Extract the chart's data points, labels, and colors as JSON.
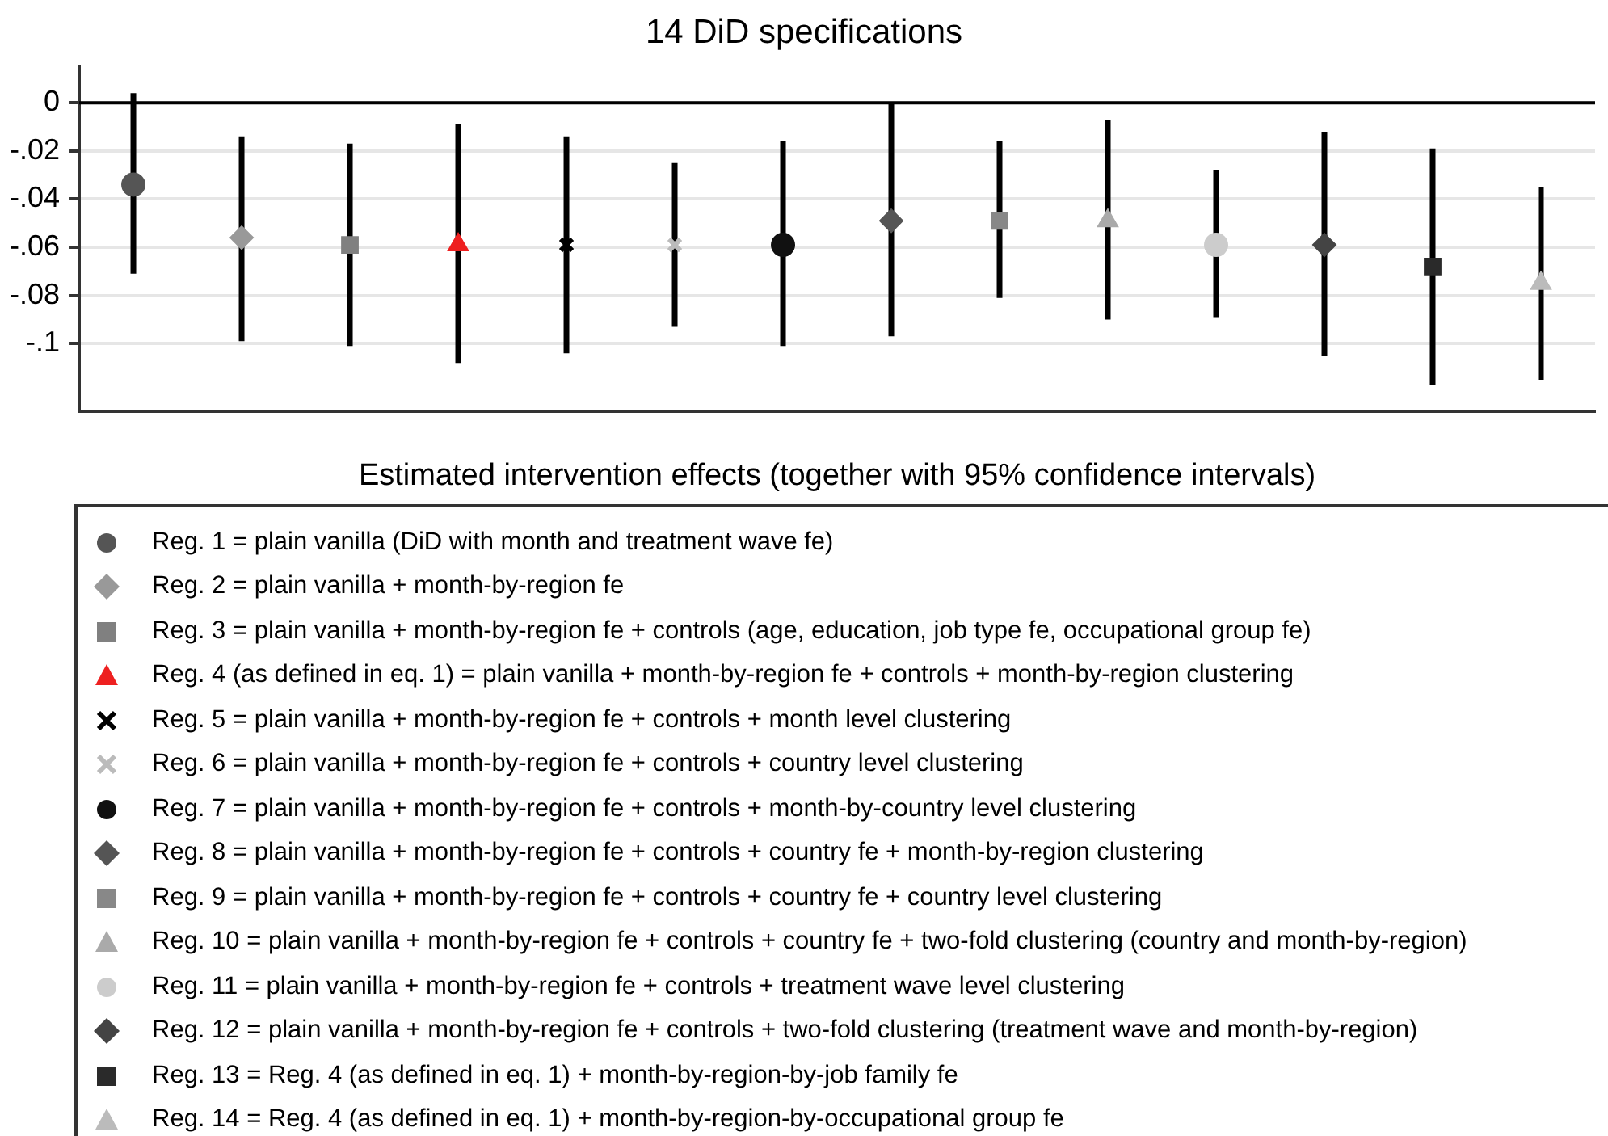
{
  "chart_data": {
    "type": "scatter",
    "title": "14 DiD specifications",
    "xlabel": "Estimated intervention effects (together with 95% confidence intervals)",
    "categories": [
      null,
      null,
      null,
      null,
      null,
      null,
      null,
      null,
      null,
      null,
      null,
      null,
      null,
      null
    ],
    "ylim": [
      -0.128,
      0.015
    ],
    "yticks": [
      {
        "value": 0,
        "label": "0"
      },
      {
        "value": -0.02,
        "label": "-.02"
      },
      {
        "value": -0.04,
        "label": "-.04"
      },
      {
        "value": -0.06,
        "label": "-.06"
      },
      {
        "value": -0.08,
        "label": "-.08"
      },
      {
        "value": -0.1,
        "label": "-.1"
      }
    ],
    "grid": "y",
    "legend": "bottom",
    "ref_lines": [
      {
        "axis": "y",
        "value": 0,
        "color": "#000000"
      }
    ],
    "series": [
      {
        "name": "Reg. 1 = plain vanilla (DiD with month and treatment wave fe)",
        "color": "#555555",
        "marker": "circle",
        "values": [
          -0.034,
          null,
          null,
          null,
          null,
          null,
          null,
          null,
          null,
          null,
          null,
          null,
          null,
          null
        ],
        "errors": [
          [
            -0.071,
            0.004
          ],
          null,
          null,
          null,
          null,
          null,
          null,
          null,
          null,
          null,
          null,
          null,
          null,
          null
        ]
      },
      {
        "name": "Reg. 2 = plain vanilla + month-by-region fe",
        "color": "#999999",
        "marker": "diamond",
        "values": [
          null,
          -0.056,
          null,
          null,
          null,
          null,
          null,
          null,
          null,
          null,
          null,
          null,
          null,
          null
        ],
        "errors": [
          null,
          [
            -0.099,
            -0.014
          ],
          null,
          null,
          null,
          null,
          null,
          null,
          null,
          null,
          null,
          null,
          null,
          null
        ]
      },
      {
        "name": "Reg. 3 = plain vanilla + month-by-region fe + controls (age, education, job type fe, occupational group fe)",
        "color": "#808080",
        "marker": "square",
        "values": [
          null,
          null,
          -0.059,
          null,
          null,
          null,
          null,
          null,
          null,
          null,
          null,
          null,
          null,
          null
        ],
        "errors": [
          null,
          null,
          [
            -0.101,
            -0.017
          ],
          null,
          null,
          null,
          null,
          null,
          null,
          null,
          null,
          null,
          null,
          null
        ]
      },
      {
        "name": "Reg. 4 (as defined in eq. 1) = plain vanilla + month-by-region fe + controls + month-by-region clustering",
        "color": "#ee2020",
        "marker": "triangle",
        "values": [
          null,
          null,
          null,
          -0.059,
          null,
          null,
          null,
          null,
          null,
          null,
          null,
          null,
          null,
          null
        ],
        "errors": [
          null,
          null,
          null,
          [
            -0.108,
            -0.009
          ],
          null,
          null,
          null,
          null,
          null,
          null,
          null,
          null,
          null,
          null
        ]
      },
      {
        "name": "Reg. 5 = plain vanilla + month-by-region fe + controls + month level clustering",
        "color": "#000000",
        "marker": "cross",
        "values": [
          null,
          null,
          null,
          null,
          -0.059,
          null,
          null,
          null,
          null,
          null,
          null,
          null,
          null,
          null
        ],
        "errors": [
          null,
          null,
          null,
          null,
          [
            -0.104,
            -0.014
          ],
          null,
          null,
          null,
          null,
          null,
          null,
          null,
          null,
          null
        ]
      },
      {
        "name": "Reg. 6 = plain vanilla + month-by-region fe + controls + country level clustering",
        "color": "#bbbbbb",
        "marker": "cross",
        "values": [
          null,
          null,
          null,
          null,
          null,
          -0.059,
          null,
          null,
          null,
          null,
          null,
          null,
          null,
          null
        ],
        "errors": [
          null,
          null,
          null,
          null,
          null,
          [
            -0.093,
            -0.025
          ],
          null,
          null,
          null,
          null,
          null,
          null,
          null,
          null
        ]
      },
      {
        "name": "Reg. 7 = plain vanilla + month-by-region fe + controls + month-by-country level clustering",
        "color": "#111111",
        "marker": "circle",
        "values": [
          null,
          null,
          null,
          null,
          null,
          null,
          -0.059,
          null,
          null,
          null,
          null,
          null,
          null,
          null
        ],
        "errors": [
          null,
          null,
          null,
          null,
          null,
          null,
          [
            -0.101,
            -0.016
          ],
          null,
          null,
          null,
          null,
          null,
          null,
          null
        ]
      },
      {
        "name": "Reg. 8 = plain vanilla + month-by-region fe + controls + country fe + month-by-region clustering",
        "color": "#555555",
        "marker": "diamond",
        "values": [
          null,
          null,
          null,
          null,
          null,
          null,
          null,
          -0.049,
          null,
          null,
          null,
          null,
          null,
          null
        ],
        "errors": [
          null,
          null,
          null,
          null,
          null,
          null,
          null,
          [
            -0.097,
            0
          ],
          null,
          null,
          null,
          null,
          null,
          null
        ]
      },
      {
        "name": "Reg. 9 = plain vanilla + month-by-region fe + controls + country fe + country level clustering",
        "color": "#888888",
        "marker": "square",
        "values": [
          null,
          null,
          null,
          null,
          null,
          null,
          null,
          null,
          -0.049,
          null,
          null,
          null,
          null,
          null
        ],
        "errors": [
          null,
          null,
          null,
          null,
          null,
          null,
          null,
          null,
          [
            -0.081,
            -0.016
          ],
          null,
          null,
          null,
          null,
          null
        ]
      },
      {
        "name": "Reg. 10 = plain vanilla + month-by-region fe + controls + country fe + two-fold clustering (country and month-by-region)",
        "color": "#aaaaaa",
        "marker": "triangle",
        "values": [
          null,
          null,
          null,
          null,
          null,
          null,
          null,
          null,
          null,
          -0.049,
          null,
          null,
          null,
          null
        ],
        "errors": [
          null,
          null,
          null,
          null,
          null,
          null,
          null,
          null,
          null,
          [
            -0.09,
            -0.007
          ],
          null,
          null,
          null,
          null
        ]
      },
      {
        "name": "Reg. 11 = plain vanilla + month-by-region fe + controls + treatment wave level clustering",
        "color": "#cccccc",
        "marker": "circle",
        "values": [
          null,
          null,
          null,
          null,
          null,
          null,
          null,
          null,
          null,
          null,
          -0.059,
          null,
          null,
          null
        ],
        "errors": [
          null,
          null,
          null,
          null,
          null,
          null,
          null,
          null,
          null,
          null,
          [
            -0.089,
            -0.028
          ],
          null,
          null,
          null
        ]
      },
      {
        "name": "Reg. 12 = plain vanilla + month-by-region fe + controls + two-fold clustering (treatment wave and month-by-region)",
        "color": "#444444",
        "marker": "diamond",
        "values": [
          null,
          null,
          null,
          null,
          null,
          null,
          null,
          null,
          null,
          null,
          null,
          -0.059,
          null,
          null
        ],
        "errors": [
          null,
          null,
          null,
          null,
          null,
          null,
          null,
          null,
          null,
          null,
          null,
          [
            -0.105,
            -0.012
          ],
          null,
          null
        ]
      },
      {
        "name": "Reg. 13 = Reg. 4 (as defined in eq. 1) + month-by-region-by-job family fe",
        "color": "#2a2a2a",
        "marker": "square",
        "values": [
          null,
          null,
          null,
          null,
          null,
          null,
          null,
          null,
          null,
          null,
          null,
          null,
          -0.068,
          null
        ],
        "errors": [
          null,
          null,
          null,
          null,
          null,
          null,
          null,
          null,
          null,
          null,
          null,
          null,
          [
            -0.117,
            -0.019
          ],
          null
        ]
      },
      {
        "name": "Reg. 14 = Reg. 4 (as defined in eq. 1) + month-by-region-by-occupational group fe",
        "color": "#bbbbbb",
        "marker": "triangle",
        "values": [
          null,
          null,
          null,
          null,
          null,
          null,
          null,
          null,
          null,
          null,
          null,
          null,
          null,
          -0.075
        ],
        "errors": [
          null,
          null,
          null,
          null,
          null,
          null,
          null,
          null,
          null,
          null,
          null,
          null,
          null,
          [
            -0.115,
            -0.035
          ]
        ]
      }
    ]
  }
}
